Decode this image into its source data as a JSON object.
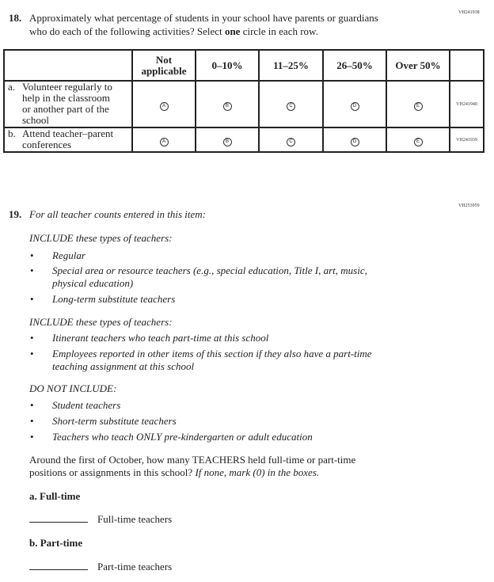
{
  "q18": {
    "id": "VH241938",
    "number": "18.",
    "line1": "Approximately what percentage of students in your school have parents or guardians",
    "line2_pre": "who do each of the following activities? Select ",
    "line2_bold": "one",
    "line2_post": " circle in each row.",
    "columns": [
      "Not applicable",
      "0–10%",
      "11–25%",
      "26–50%",
      "Over 50%"
    ],
    "rows": [
      {
        "letter": "a.",
        "lines": [
          "Volunteer regularly to",
          "help in the classroom",
          "or another part of the",
          "school"
        ],
        "id": "VH241940",
        "bubbles": [
          "A",
          "B",
          "C",
          "D",
          "E"
        ]
      },
      {
        "letter": "b.",
        "lines": [
          "Attend teacher–parent",
          "conferences"
        ],
        "id": "VH241939",
        "bubbles": [
          "A",
          "B",
          "C",
          "D",
          "E"
        ]
      }
    ]
  },
  "q19": {
    "id": "VH253959",
    "number": "19.",
    "intro": "For all teacher counts entered in this item:",
    "include1_heading": "INCLUDE these types of teachers:",
    "include1_items": [
      [
        "Regular"
      ],
      [
        "Special area or resource teachers (e.g., special education, Title I, art, music,",
        "physical education)"
      ],
      [
        "Long-term substitute teachers"
      ]
    ],
    "include2_heading": "INCLUDE these types of teachers:",
    "include2_items": [
      [
        "Itinerant teachers who teach part-time at this school"
      ],
      [
        "Employees reported in other items of this section if they also have a part-time",
        "teaching assignment at this school"
      ]
    ],
    "exclude_heading": "DO NOT INCLUDE:",
    "exclude_items": [
      [
        "Student teachers"
      ],
      [
        "Short-term substitute teachers"
      ],
      [
        "Teachers who teach ONLY pre-kindergarten or adult education"
      ]
    ],
    "question_line1": "Around the first of October, how many TEACHERS held full-time or part-time",
    "question_line2_pre": "positions or assignments in this school? ",
    "question_line2_it": "If none, mark (0) in the boxes.",
    "a_label": "a. Full-time",
    "a_field": "Full-time teachers",
    "b_label": "b. Part-time",
    "b_field": "Part-time teachers"
  }
}
